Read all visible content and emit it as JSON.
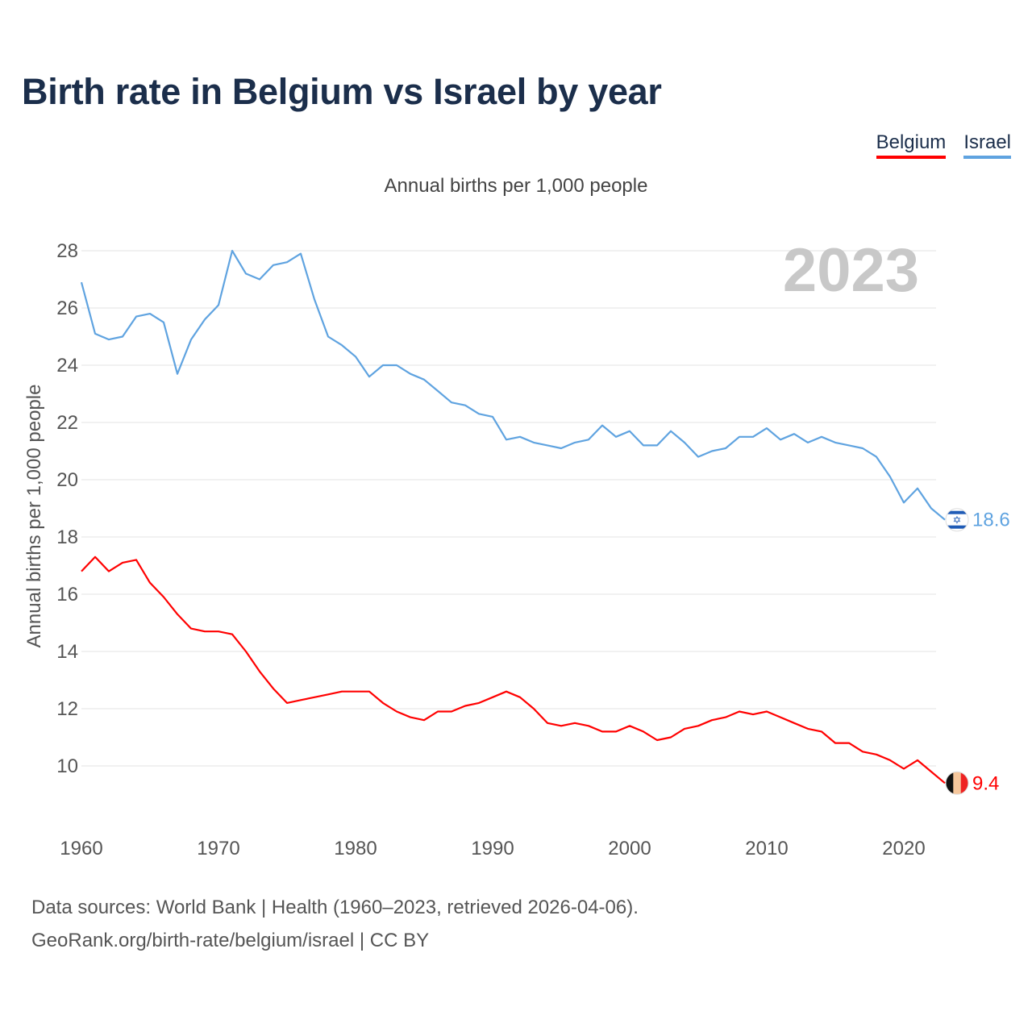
{
  "title": "Birth rate in Belgium vs Israel by year",
  "subtitle": "Annual births per 1,000 people",
  "legend": [
    {
      "name": "Belgium",
      "color": "#ff0000"
    },
    {
      "name": "Israel",
      "color": "#5fa3e0"
    }
  ],
  "footer": {
    "sources": "Data sources: World Bank | Health (1960–2023, retrieved 2026-04-06).",
    "credit": "GeoRank.org/birth-rate/belgium/israel | CC BY"
  },
  "chart_data": {
    "type": "line",
    "title": "Birth rate in Belgium vs Israel by year",
    "subtitle": "Annual births per 1,000 people",
    "ylabel": "Annual births per 1,000 people",
    "xlabel": "",
    "year_watermark": "2023",
    "xlim": [
      1960,
      2023
    ],
    "ylim": [
      8.2,
      29
    ],
    "xticks": [
      1960,
      1970,
      1980,
      1990,
      2000,
      2010,
      2020
    ],
    "yticks": [
      10,
      12,
      14,
      16,
      18,
      20,
      22,
      24,
      26,
      28
    ],
    "grid": true,
    "x": [
      1960,
      1961,
      1962,
      1963,
      1964,
      1965,
      1966,
      1967,
      1968,
      1969,
      1970,
      1971,
      1972,
      1973,
      1974,
      1975,
      1976,
      1977,
      1978,
      1979,
      1980,
      1981,
      1982,
      1983,
      1984,
      1985,
      1986,
      1987,
      1988,
      1989,
      1990,
      1991,
      1992,
      1993,
      1994,
      1995,
      1996,
      1997,
      1998,
      1999,
      2000,
      2001,
      2002,
      2003,
      2004,
      2005,
      2006,
      2007,
      2008,
      2009,
      2010,
      2011,
      2012,
      2013,
      2014,
      2015,
      2016,
      2017,
      2018,
      2019,
      2020,
      2021,
      2022,
      2023
    ],
    "series": [
      {
        "name": "Belgium",
        "color": "#ff0000",
        "end_label": "9.4",
        "values": [
          16.8,
          17.3,
          16.8,
          17.1,
          17.2,
          16.4,
          15.9,
          15.3,
          14.8,
          14.7,
          14.7,
          14.6,
          14.0,
          13.3,
          12.7,
          12.2,
          12.3,
          12.4,
          12.5,
          12.6,
          12.6,
          12.6,
          12.2,
          11.9,
          11.7,
          11.6,
          11.9,
          11.9,
          12.1,
          12.2,
          12.4,
          12.6,
          12.4,
          12.0,
          11.5,
          11.4,
          11.5,
          11.4,
          11.2,
          11.2,
          11.4,
          11.2,
          10.9,
          11.0,
          11.3,
          11.4,
          11.6,
          11.7,
          11.9,
          11.8,
          11.9,
          11.7,
          11.5,
          11.3,
          11.2,
          10.8,
          10.8,
          10.5,
          10.4,
          10.2,
          9.9,
          10.2,
          9.8,
          9.4
        ]
      },
      {
        "name": "Israel",
        "color": "#5fa3e0",
        "end_label": "18.6",
        "values": [
          26.9,
          25.1,
          24.9,
          25.0,
          25.7,
          25.8,
          25.5,
          23.7,
          24.9,
          25.6,
          26.1,
          28.0,
          27.2,
          27.0,
          27.5,
          27.6,
          27.9,
          26.3,
          25.0,
          24.7,
          24.3,
          23.6,
          24.0,
          24.0,
          23.7,
          23.5,
          23.1,
          22.7,
          22.6,
          22.3,
          22.2,
          21.4,
          21.5,
          21.3,
          21.2,
          21.1,
          21.3,
          21.4,
          21.9,
          21.5,
          21.7,
          21.2,
          21.2,
          21.7,
          21.3,
          20.8,
          21.0,
          21.1,
          21.5,
          21.5,
          21.8,
          21.4,
          21.6,
          21.3,
          21.5,
          21.3,
          21.2,
          21.1,
          20.8,
          20.1,
          19.2,
          19.7,
          19.0,
          18.6
        ]
      }
    ]
  }
}
